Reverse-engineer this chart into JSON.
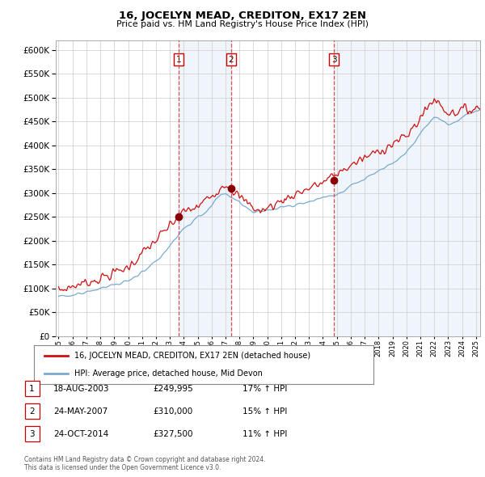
{
  "title": "16, JOCELYN MEAD, CREDITON, EX17 2EN",
  "subtitle": "Price paid vs. HM Land Registry's House Price Index (HPI)",
  "ylim": [
    0,
    620000
  ],
  "yticks": [
    0,
    50000,
    100000,
    150000,
    200000,
    250000,
    300000,
    350000,
    400000,
    450000,
    500000,
    550000,
    600000
  ],
  "background_color": "#ffffff",
  "plot_bg_color": "#ffffff",
  "grid_color": "#cccccc",
  "shade_color": "#ddeeff",
  "sale_year_nums": [
    2003.625,
    2007.4,
    2014.8
  ],
  "sale_prices": [
    249995,
    310000,
    327500
  ],
  "sale_labels": [
    "1",
    "2",
    "3"
  ],
  "sale_label_color": "#cc0000",
  "vline_color": "#dd3333",
  "red_line_color": "#cc1111",
  "blue_line_color": "#7aaad0",
  "legend_red_label": "16, JOCELYN MEAD, CREDITON, EX17 2EN (detached house)",
  "legend_blue_label": "HPI: Average price, detached house, Mid Devon",
  "table_rows": [
    [
      "1",
      "18-AUG-2003",
      "£249,995",
      "17% ↑ HPI"
    ],
    [
      "2",
      "24-MAY-2007",
      "£310,000",
      "15% ↑ HPI"
    ],
    [
      "3",
      "24-OCT-2014",
      "£327,500",
      "11% ↑ HPI"
    ]
  ],
  "footnote": "Contains HM Land Registry data © Crown copyright and database right 2024.\nThis data is licensed under the Open Government Licence v3.0.",
  "xstart": 1994.8,
  "xend": 2025.3
}
